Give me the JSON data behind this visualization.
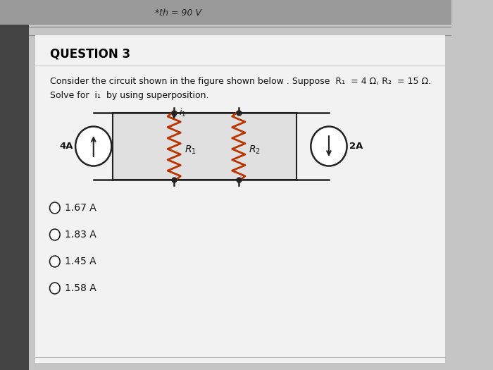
{
  "bg_top_color": "#b8b8b8",
  "bg_main_color": "#c5c5c5",
  "left_shadow_color": "#555555",
  "white_panel_color": "#f0f0f0",
  "header_text": "*th = 90 V",
  "question_title": "QUESTION 3",
  "question_text_line1": "Consider the circuit shown in the figure shown below . Suppose  R₁  = 4 Ω, R₂  = 15 Ω.",
  "question_text_line2": "Solve for  i₁  by using superposition.",
  "options": [
    "1.67 A",
    "1.83 A",
    "1.45 A",
    "1.58 A"
  ],
  "circuit_line_color": "#222222",
  "resistor_color": "#bb3300",
  "text_color": "#111111",
  "title_color": "#000000",
  "circuit_fill": "#e8e8e8",
  "top_bar_color": "#999999"
}
